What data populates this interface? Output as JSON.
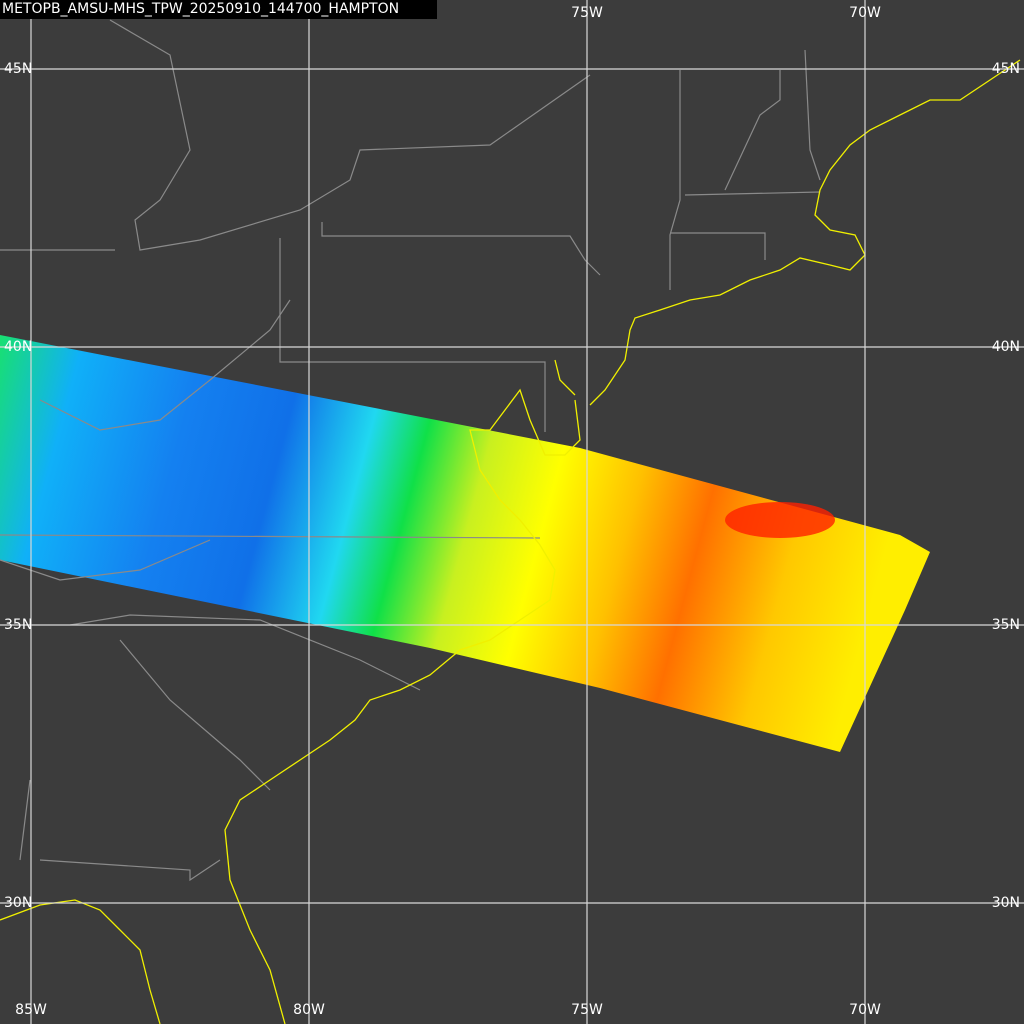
{
  "header": {
    "title": "METOPB_AMSU-MHS_TPW_20250910_144700_HAMPTON"
  },
  "grid": {
    "longitudes": [
      "85W",
      "80W",
      "75W",
      "70W"
    ],
    "latitudes": [
      "45N",
      "40N",
      "35N",
      "30N"
    ]
  }
}
